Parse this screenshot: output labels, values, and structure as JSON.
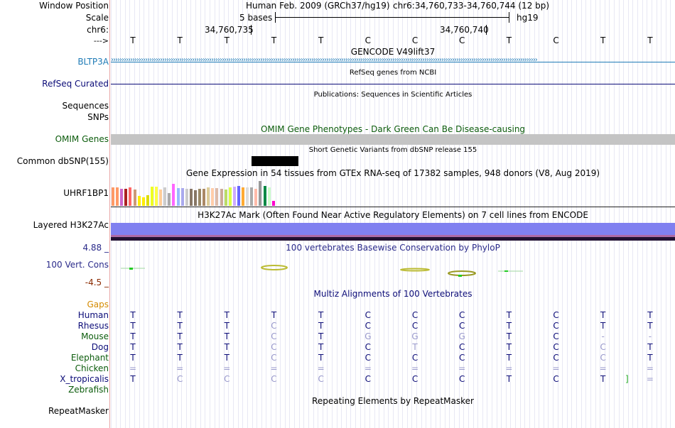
{
  "labels": {
    "window_position": "Window Position",
    "scale": "Scale",
    "chr": "chr6:",
    "strand": "--->",
    "bltp3a": "BLTP3A",
    "refseq": "RefSeq Curated",
    "sequences": "Sequences",
    "snps": "SNPs",
    "omim": "OMIM Genes",
    "common_dbsnp": "Common dbSNP(155)",
    "uhrf1bp1": "UHRF1BP1",
    "h3k27ac": "Layered H3K27Ac",
    "cons_max": "4.88 _",
    "cons_label": "100 Vert. Cons",
    "cons_min": "-4.5 _",
    "gaps": "Gaps",
    "species": [
      "Human",
      "Rhesus",
      "Mouse",
      "Dog",
      "Elephant",
      "Chicken",
      "X_tropicalis",
      "Zebrafish"
    ],
    "repeatmasker": "RepeatMasker"
  },
  "header": {
    "assembly": "Human Feb. 2009 (GRCh37/hg19)",
    "position": "chr6:34,760,733-34,760,744 (12 bp)",
    "scale_text": "5 bases",
    "scale_db": "hg19",
    "coord1": "34,760,735",
    "coord2": "34,760,740"
  },
  "bases": [
    "T",
    "T",
    "T",
    "T",
    "T",
    "C",
    "C",
    "C",
    "T",
    "C",
    "T",
    "T"
  ],
  "tracks": {
    "gencode": "GENCODE V49lift37",
    "refseq": "RefSeq genes from NCBI",
    "publications": "Publications: Sequences in Scientific Articles",
    "omim": "OMIM Gene Phenotypes - Dark Green Can Be Disease-causing",
    "dbsnp": "Short Genetic Variants from dbSNP release 155",
    "gtex": "Gene Expression in 54 tissues from GTEx RNA-seq of 17382 samples, 948 donors (V8, Aug 2019)",
    "h3k27ac": "H3K27Ac Mark (Often Found Near Active Regulatory Elements) on 7 cell lines from ENCODE",
    "phylop": "100 vertebrates Basewise Conservation by PhyloP",
    "multiz": "Multiz Alignments of 100 Vertebrates",
    "repeatmasker": "Repeating Elements by RepeatMasker"
  },
  "alignment": [
    [
      "T",
      "T",
      "T",
      "T",
      "T",
      "C",
      "C",
      "C",
      "T",
      "C",
      "T",
      "T"
    ],
    [
      "T",
      "T",
      "T",
      "C",
      "T",
      "C",
      "C",
      "C",
      "T",
      "C",
      "T",
      "T"
    ],
    [
      "T",
      "T",
      "T",
      "C",
      "T",
      "G",
      "G",
      "G",
      "T",
      "C",
      "-",
      "-"
    ],
    [
      "T",
      "T",
      "T",
      "C",
      "T",
      "C",
      "T",
      "C",
      "T",
      "C",
      "C",
      "T"
    ],
    [
      "T",
      "T",
      "T",
      "C",
      "T",
      "C",
      "C",
      "C",
      "T",
      "C",
      "C",
      "T"
    ],
    [
      "=",
      "=",
      "=",
      "=",
      "=",
      "=",
      "=",
      "=",
      "=",
      "=",
      "=",
      "="
    ],
    [
      "T",
      "C",
      "C",
      "C",
      "C",
      "C",
      "C",
      "C",
      "T",
      "C",
      "T",
      "="
    ],
    [
      "",
      "",
      "",
      "",
      "",
      "",
      "",
      "",
      "",
      "",
      "",
      ""
    ]
  ],
  "alignment_dim": [
    [
      0,
      0,
      0,
      0,
      0,
      0,
      0,
      0,
      0,
      0,
      0,
      0
    ],
    [
      0,
      0,
      0,
      1,
      0,
      0,
      0,
      0,
      0,
      0,
      0,
      0
    ],
    [
      0,
      0,
      0,
      1,
      0,
      1,
      1,
      1,
      0,
      0,
      1,
      1
    ],
    [
      0,
      0,
      0,
      1,
      0,
      0,
      1,
      0,
      0,
      0,
      1,
      0
    ],
    [
      0,
      0,
      0,
      1,
      0,
      0,
      0,
      0,
      0,
      0,
      1,
      0
    ],
    [
      1,
      1,
      1,
      1,
      1,
      1,
      1,
      1,
      1,
      1,
      1,
      1
    ],
    [
      0,
      1,
      1,
      1,
      1,
      0,
      0,
      0,
      0,
      0,
      0,
      1
    ],
    [
      0,
      0,
      0,
      0,
      0,
      0,
      0,
      0,
      0,
      0,
      0,
      0
    ]
  ],
  "gtex_colors": [
    "#ff9966",
    "#ff9966",
    "#cc66cc",
    "#aa2222",
    "#ff6666",
    "#cc9977",
    "#ffee00",
    "#ffee00",
    "#dddd00",
    "#eeff22",
    "#ffff44",
    "#ffcc99",
    "#cccccc",
    "#aaaaaa",
    "#ff66ff",
    "#99bbff",
    "#aaaaee",
    "#cccccc",
    "#887766",
    "#887766",
    "#998866",
    "#aa8866",
    "#ddcc99",
    "#ffccaa",
    "#ddbbaa",
    "#ccaa99",
    "#bbdd66",
    "#ddff44",
    "#ccaaff",
    "#6666ff",
    "#ffaa33",
    "#dddddd",
    "#aaaaaa",
    "#ffbbaa",
    "#999999",
    "#008844",
    "#ccffcc",
    "#ff00cc"
  ],
  "gtex_values": [
    0.95,
    0.95,
    0.9,
    0.9,
    0.95,
    0.85,
    0.5,
    0.45,
    0.55,
    1.0,
    1.0,
    0.85,
    0.95,
    0.65,
    1.15,
    0.92,
    0.92,
    0.88,
    0.9,
    0.82,
    0.88,
    0.9,
    0.95,
    0.92,
    0.92,
    0.9,
    0.85,
    0.95,
    1.0,
    1.05,
    0.98,
    0.95,
    0.95,
    0.88,
    1.28,
    1.05,
    0.95,
    0.25
  ]
}
